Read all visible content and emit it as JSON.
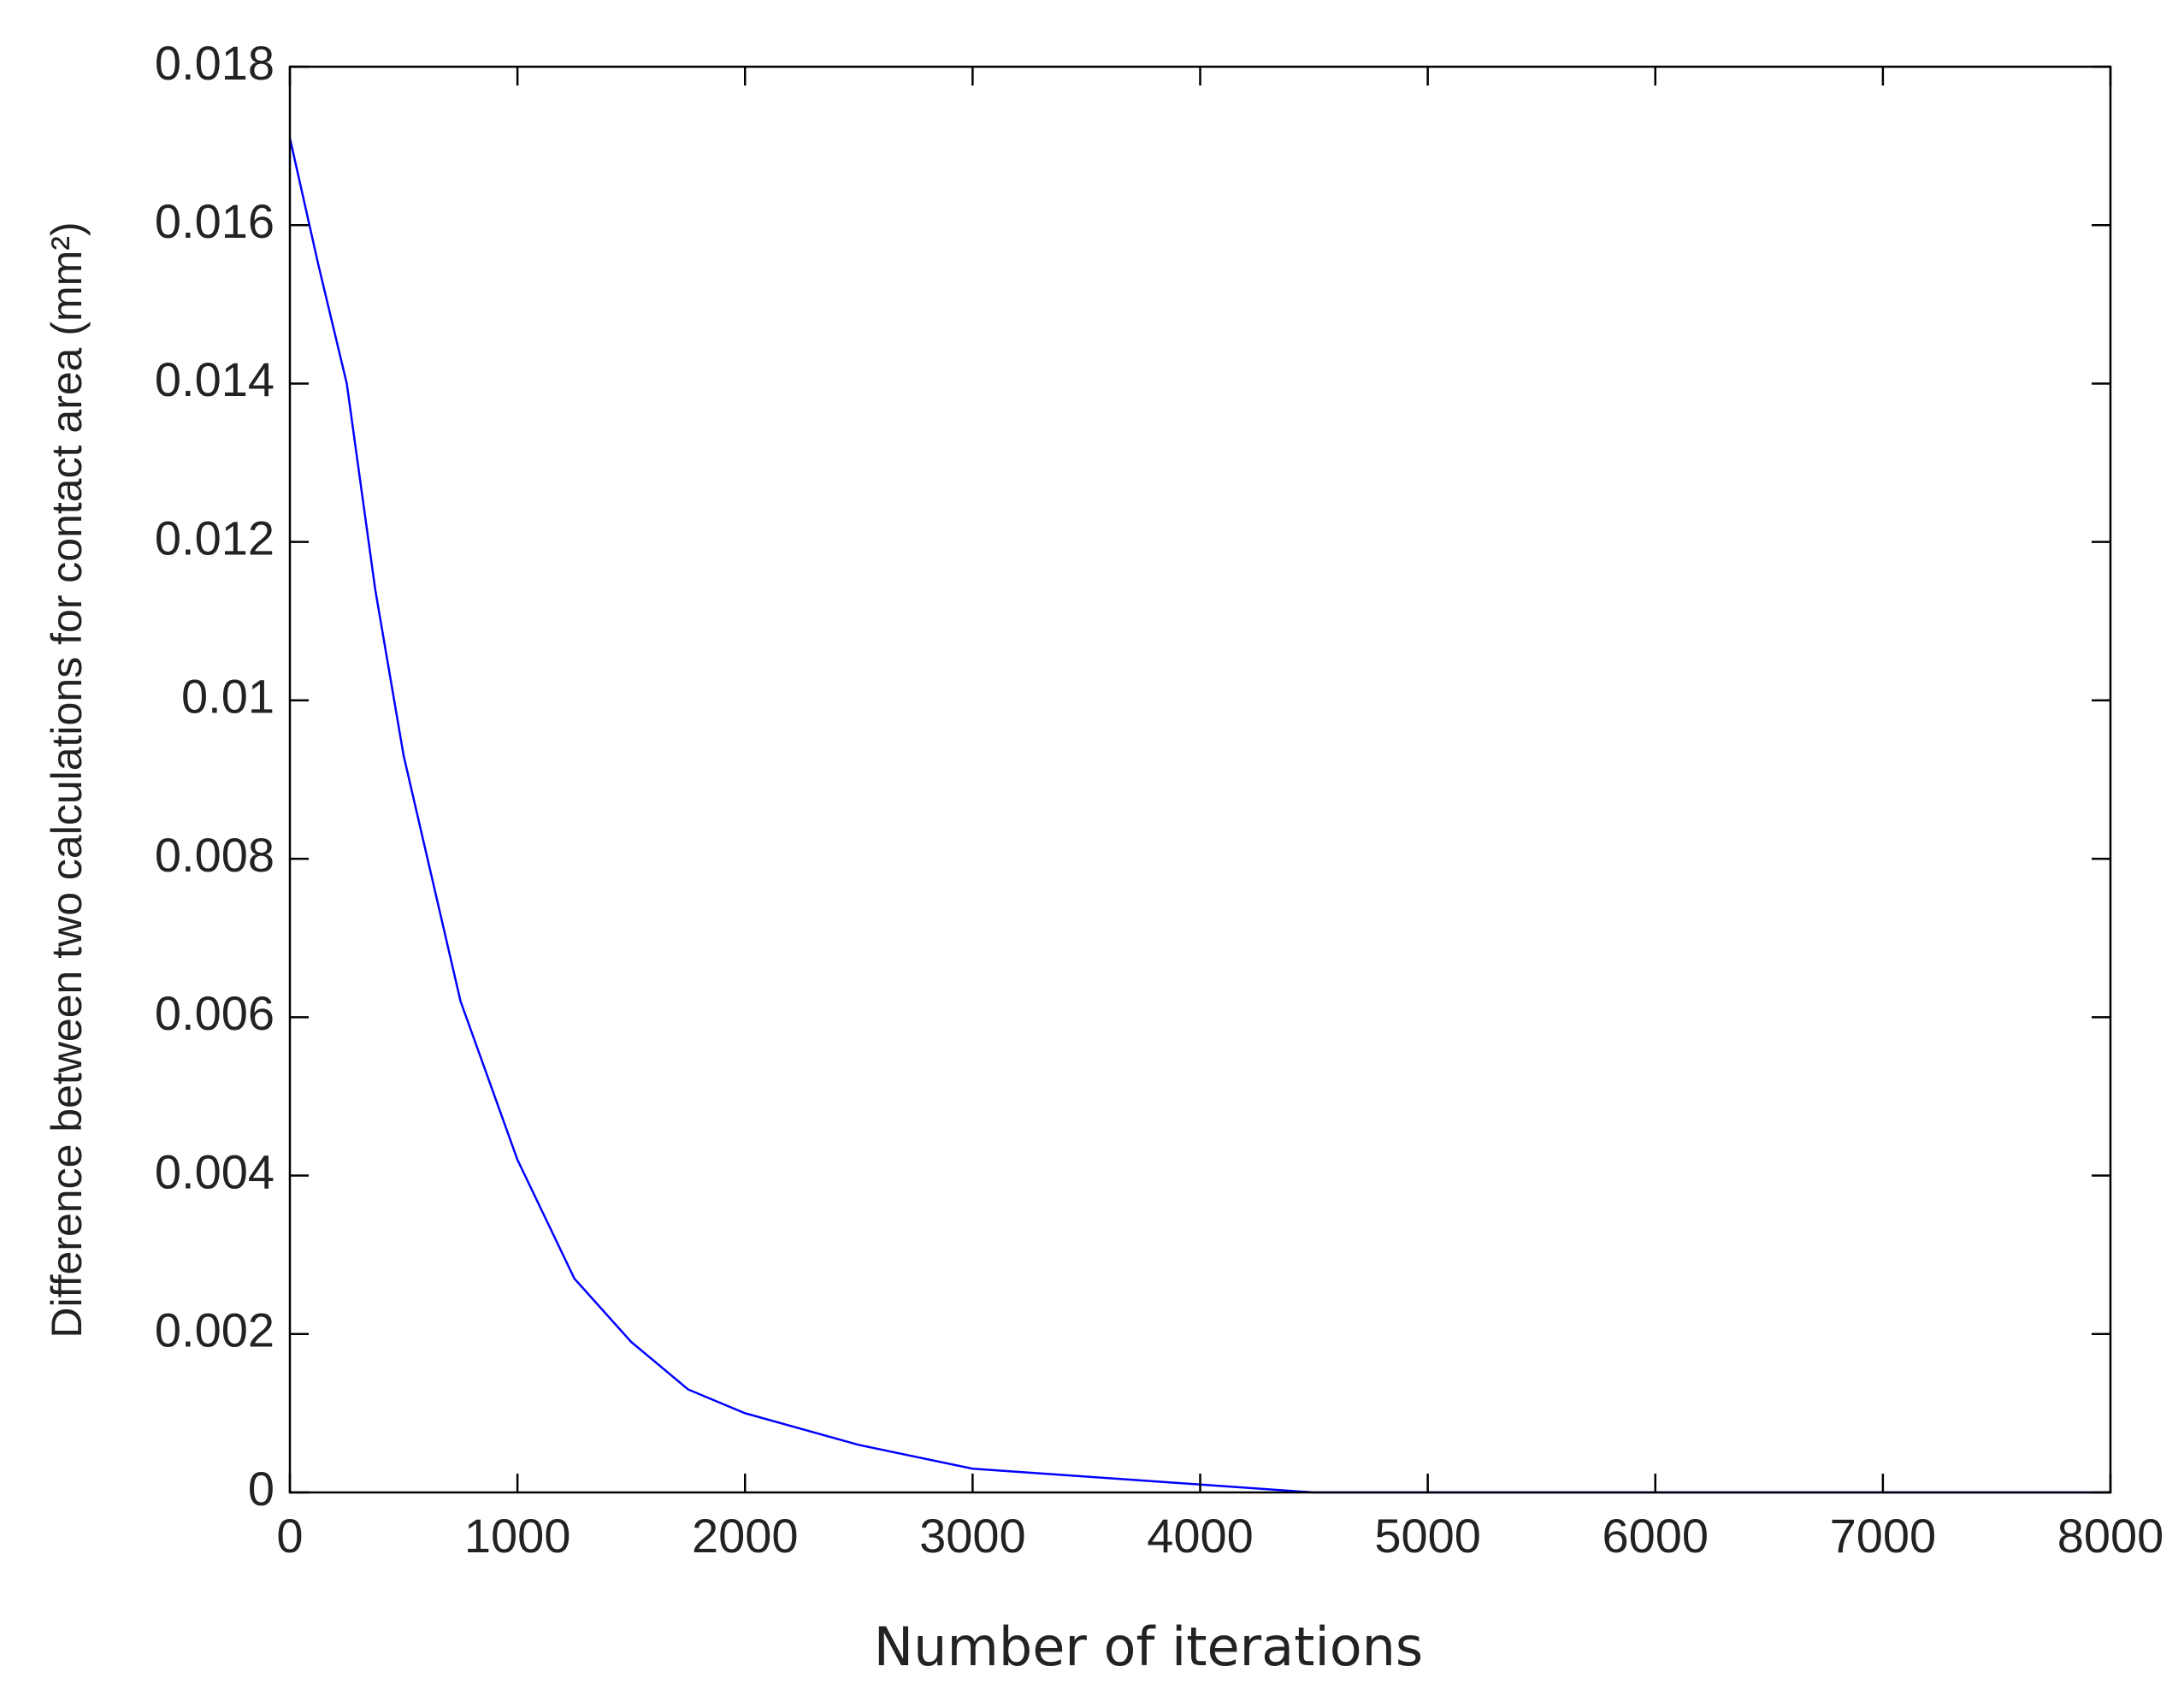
{
  "chart_data": {
    "type": "line",
    "x_label": "Number of iterations",
    "y_label": "Difference between two calculations for contact area (mm²)",
    "x": [
      0,
      125,
      250,
      375,
      500,
      750,
      1000,
      1250,
      1500,
      1750,
      2000,
      2500,
      3000,
      3500,
      4000,
      4500,
      8000
    ],
    "series": [
      {
        "color": "#0000ff",
        "values": [
          0.0171,
          0.0155,
          0.014,
          0.0114,
          0.0093,
          0.0062,
          0.0042,
          0.0027,
          0.0019,
          0.0013,
          0.001,
          0.0006,
          0.0003,
          0.0002,
          0.0001,
          0,
          0
        ]
      }
    ],
    "xlim": [
      0,
      8000
    ],
    "xticks": [
      0,
      1000,
      2000,
      3000,
      4000,
      5000,
      6000,
      7000,
      8000
    ],
    "ylim": [
      0,
      0.018
    ],
    "yticks": [
      0,
      0.002,
      0.004,
      0.006,
      0.008,
      0.01,
      0.012,
      0.014,
      0.016,
      0.018
    ]
  }
}
